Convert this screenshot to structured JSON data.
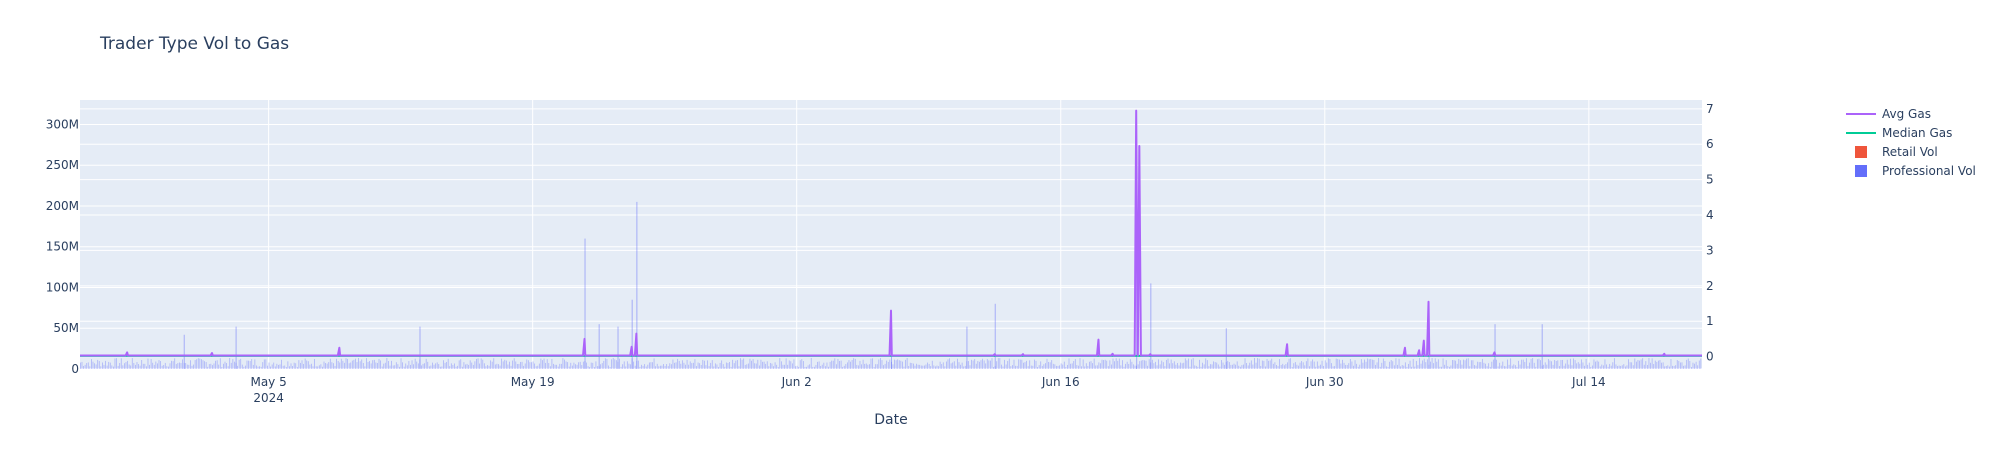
{
  "chart_data": {
    "type": "bar",
    "title": "Trader Type Vol to Gas",
    "xlabel": "Date",
    "ylabel": "",
    "y2label": "",
    "x_range": [
      "2024-04-25",
      "2024-07-20"
    ],
    "ylim": [
      0,
      330000000
    ],
    "y2lim": [
      -0.35,
      7.25
    ],
    "grid": true,
    "legend_position": "top-right",
    "x_ticks": [
      {
        "date": "2024-05-05",
        "label": "May 5",
        "sublabel": "2024"
      },
      {
        "date": "2024-05-19",
        "label": "May 19",
        "sublabel": ""
      },
      {
        "date": "2024-06-02",
        "label": "Jun 2",
        "sublabel": ""
      },
      {
        "date": "2024-06-16",
        "label": "Jun 16",
        "sublabel": ""
      },
      {
        "date": "2024-06-30",
        "label": "Jun 30",
        "sublabel": ""
      },
      {
        "date": "2024-07-14",
        "label": "Jul 14",
        "sublabel": ""
      }
    ],
    "y_ticks": [
      {
        "value": 0,
        "label": "0"
      },
      {
        "value": 50000000,
        "label": "50M"
      },
      {
        "value": 100000000,
        "label": "100M"
      },
      {
        "value": 150000000,
        "label": "150M"
      },
      {
        "value": 200000000,
        "label": "200M"
      },
      {
        "value": 250000000,
        "label": "250M"
      },
      {
        "value": 300000000,
        "label": "300M"
      }
    ],
    "y2_ticks": [
      {
        "value": 0,
        "label": "0"
      },
      {
        "value": 1,
        "label": "1"
      },
      {
        "value": 2,
        "label": "2"
      },
      {
        "value": 3,
        "label": "3"
      },
      {
        "value": 4,
        "label": "4"
      },
      {
        "value": 5,
        "label": "5"
      },
      {
        "value": 6,
        "label": "6"
      },
      {
        "value": 7,
        "label": "7"
      }
    ],
    "series": [
      {
        "name": "Avg Gas",
        "kind": "line",
        "axis": "y2",
        "color": "#ab63fa",
        "baseline": 0.03,
        "points": [
          [
            "2024-04-27T12:00",
            0.12
          ],
          [
            "2024-04-27T13:00",
            0.03
          ],
          [
            "2024-05-02T00:00",
            0.1
          ],
          [
            "2024-05-02T01:00",
            0.03
          ],
          [
            "2024-05-08T18:00",
            0.25
          ],
          [
            "2024-05-08T19:00",
            0.03
          ],
          [
            "2024-05-21T18:00",
            0.5
          ],
          [
            "2024-05-21T19:00",
            0.03
          ],
          [
            "2024-05-24T06:00",
            0.28
          ],
          [
            "2024-05-24T07:00",
            0.03
          ],
          [
            "2024-05-24T12:00",
            0.65
          ],
          [
            "2024-05-24T13:00",
            0.03
          ],
          [
            "2024-06-07T00:00",
            1.3
          ],
          [
            "2024-06-07T01:00",
            0.03
          ],
          [
            "2024-06-12T12:00",
            0.07
          ],
          [
            "2024-06-12T13:00",
            0.03
          ],
          [
            "2024-06-14T00:00",
            0.07
          ],
          [
            "2024-06-14T01:00",
            0.03
          ],
          [
            "2024-06-18T00:00",
            0.48
          ],
          [
            "2024-06-18T01:00",
            0.03
          ],
          [
            "2024-06-18T18:00",
            0.08
          ],
          [
            "2024-06-18T19:00",
            0.03
          ],
          [
            "2024-06-20T00:00",
            6.95
          ],
          [
            "2024-06-20T02:00",
            0.03
          ],
          [
            "2024-06-20T04:00",
            5.95
          ],
          [
            "2024-06-20T06:00",
            0.03
          ],
          [
            "2024-06-20T18:00",
            0.07
          ],
          [
            "2024-06-20T19:00",
            0.03
          ],
          [
            "2024-06-28T00:00",
            0.35
          ],
          [
            "2024-06-28T01:00",
            0.03
          ],
          [
            "2024-07-04T06:00",
            0.25
          ],
          [
            "2024-07-04T07:00",
            0.03
          ],
          [
            "2024-07-05T00:00",
            0.18
          ],
          [
            "2024-07-05T01:00",
            0.03
          ],
          [
            "2024-07-05T06:00",
            0.45
          ],
          [
            "2024-07-05T07:00",
            0.03
          ],
          [
            "2024-07-05T12:00",
            1.55
          ],
          [
            "2024-07-05T13:00",
            0.03
          ],
          [
            "2024-07-09T00:00",
            0.12
          ],
          [
            "2024-07-09T01:00",
            0.03
          ],
          [
            "2024-07-18T00:00",
            0.08
          ],
          [
            "2024-07-18T01:00",
            0.03
          ]
        ]
      },
      {
        "name": "Median Gas",
        "kind": "line",
        "axis": "y2",
        "color": "#00cc96",
        "baseline": 0.02,
        "points": []
      },
      {
        "name": "Retail Vol",
        "kind": "bar",
        "axis": "y",
        "color": "#ef553b",
        "values": []
      },
      {
        "name": "Professional Vol",
        "kind": "bar",
        "axis": "y",
        "color": "#636efa",
        "typical": 8000000,
        "spikes": [
          [
            "2024-04-30T12:00",
            42000000
          ],
          [
            "2024-05-03T06:00",
            52000000
          ],
          [
            "2024-05-13T00:00",
            52000000
          ],
          [
            "2024-05-21T18:00",
            160000000
          ],
          [
            "2024-05-22T12:00",
            55000000
          ],
          [
            "2024-05-23T12:00",
            52000000
          ],
          [
            "2024-05-24T06:00",
            85000000
          ],
          [
            "2024-05-24T12:00",
            205000000
          ],
          [
            "2024-06-07T00:00",
            60000000
          ],
          [
            "2024-06-11T00:00",
            52000000
          ],
          [
            "2024-06-12T12:00",
            80000000
          ],
          [
            "2024-06-20T00:00",
            175000000
          ],
          [
            "2024-06-20T18:00",
            105000000
          ],
          [
            "2024-06-24T18:00",
            50000000
          ],
          [
            "2024-07-05T12:00",
            60000000
          ],
          [
            "2024-07-09T00:00",
            55000000
          ],
          [
            "2024-07-11T12:00",
            55000000
          ]
        ]
      }
    ]
  }
}
